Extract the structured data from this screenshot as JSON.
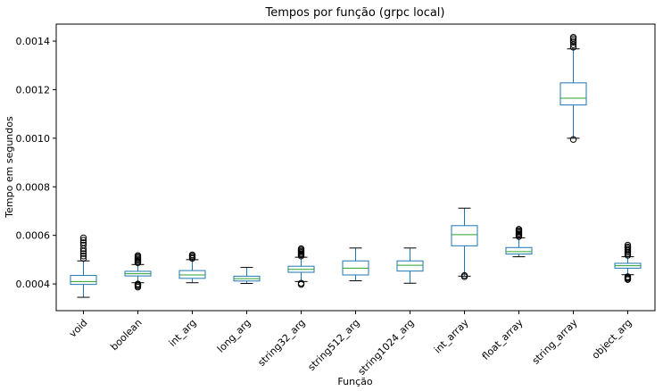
{
  "chart_data": {
    "type": "box",
    "title": "Tempos por função (grpc local)",
    "xlabel": "Função",
    "ylabel": "Tempo em segundos",
    "ylim": [
      0.00029,
      0.00147
    ],
    "yticks": [
      0.0004,
      0.0006,
      0.0008,
      0.001,
      0.0012,
      0.0014
    ],
    "ytick_labels": [
      "0.0004",
      "0.0006",
      "0.0008",
      "0.0010",
      "0.0012",
      "0.0014"
    ],
    "grid": false,
    "colors": {
      "box": "#1f77b4",
      "median": "#2ca02c",
      "whisker": "#1f77b4",
      "cap": "#000000",
      "outlier": "#000000"
    },
    "categories": [
      "void",
      "boolean",
      "int_arg",
      "long_arg",
      "string32_arg",
      "string512_arg",
      "string1024_arg",
      "int_array",
      "float_array",
      "string_array",
      "object_arg"
    ],
    "boxes": [
      {
        "whislo": 0.000345,
        "q1": 0.000398,
        "med": 0.00041,
        "q3": 0.000435,
        "whishi": 0.000495,
        "fliers": [
          0.000505,
          0.000515,
          0.000525,
          0.000535,
          0.000545,
          0.00056,
          0.00057,
          0.00058,
          0.00059
        ]
      },
      {
        "whislo": 0.000405,
        "q1": 0.000433,
        "med": 0.000442,
        "q3": 0.000452,
        "whishi": 0.00048,
        "fliers": [
          0.000387,
          0.000392,
          0.000397,
          0.0004,
          0.000487,
          0.000492,
          0.000497,
          0.000502,
          0.000507,
          0.000512,
          0.000517
        ]
      },
      {
        "whislo": 0.000405,
        "q1": 0.000423,
        "med": 0.000437,
        "q3": 0.000455,
        "whishi": 0.0005,
        "fliers": [
          0.000505,
          0.00051,
          0.000515,
          0.00052
        ]
      },
      {
        "whislo": 0.000402,
        "q1": 0.000412,
        "med": 0.000422,
        "q3": 0.000432,
        "whishi": 0.000468,
        "fliers": []
      },
      {
        "whislo": 0.00041,
        "q1": 0.000448,
        "med": 0.00046,
        "q3": 0.000473,
        "whishi": 0.00051,
        "fliers": [
          0.000398,
          0.000403,
          0.000515,
          0.00052,
          0.000525,
          0.00053,
          0.000535,
          0.00054,
          0.000545
        ]
      },
      {
        "whislo": 0.000413,
        "q1": 0.000437,
        "med": 0.000465,
        "q3": 0.000495,
        "whishi": 0.000548,
        "fliers": []
      },
      {
        "whislo": 0.000403,
        "q1": 0.000453,
        "med": 0.000477,
        "q3": 0.000495,
        "whishi": 0.000548,
        "fliers": []
      },
      {
        "whislo": 0.000432,
        "q1": 0.000557,
        "med": 0.000603,
        "q3": 0.00064,
        "whishi": 0.000712,
        "fliers": [
          0.00043,
          0.000435
        ]
      },
      {
        "whislo": 0.000512,
        "q1": 0.000523,
        "med": 0.000533,
        "q3": 0.00055,
        "whishi": 0.00059,
        "fliers": [
          0.000595,
          0.0006,
          0.000605,
          0.00061,
          0.000615,
          0.00062,
          0.000625
        ]
      },
      {
        "whislo": 0.001,
        "q1": 0.001137,
        "med": 0.001165,
        "q3": 0.001228,
        "whishi": 0.001368,
        "fliers": [
          0.000995,
          0.001375,
          0.001385,
          0.001395,
          0.001402,
          0.00141,
          0.001416
        ]
      },
      {
        "whislo": 0.000438,
        "q1": 0.000465,
        "med": 0.000475,
        "q3": 0.000485,
        "whishi": 0.000512,
        "fliers": [
          0.000418,
          0.000422,
          0.000426,
          0.00043,
          0.000518,
          0.000524,
          0.00053,
          0.000536,
          0.000542,
          0.000548,
          0.000553,
          0.00056
        ]
      }
    ]
  }
}
